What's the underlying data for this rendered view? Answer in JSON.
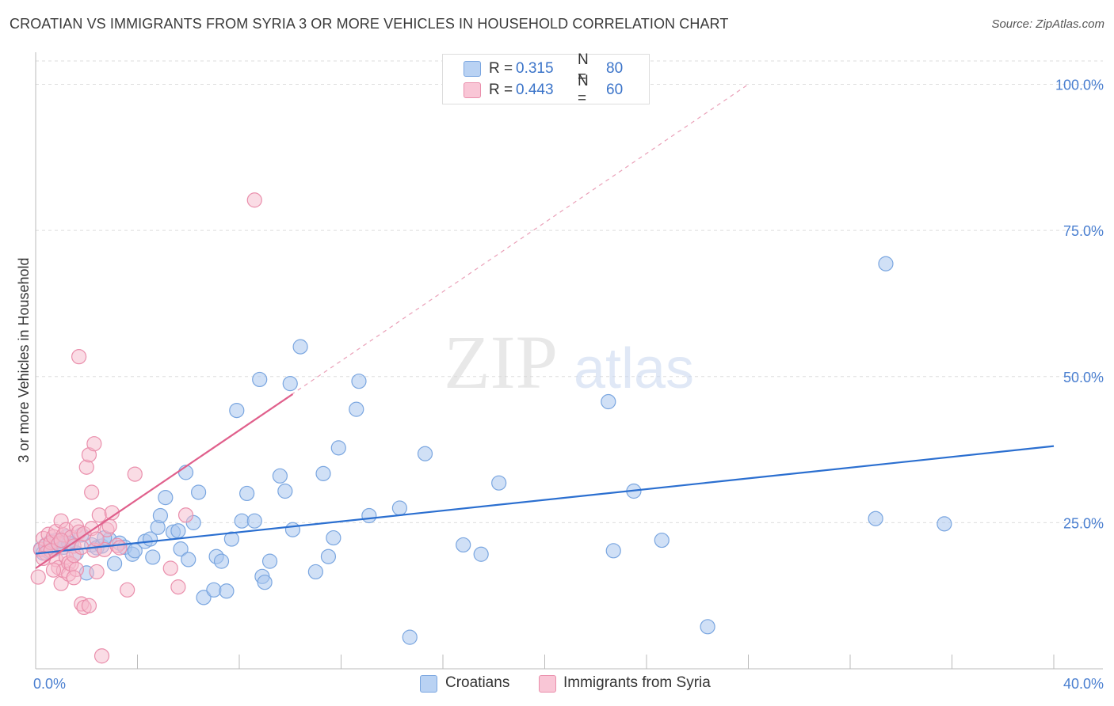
{
  "header": {
    "title": "CROATIAN VS IMMIGRANTS FROM SYRIA 3 OR MORE VEHICLES IN HOUSEHOLD CORRELATION CHART",
    "source": "Source: ZipAtlas.com"
  },
  "watermark": {
    "zip": "ZIP",
    "atlas": "atlas"
  },
  "legend": {
    "rows": [
      {
        "label": "R =",
        "r": "0.315",
        "n_label": "N =",
        "n": "80",
        "color": "#a9c6ef"
      },
      {
        "label": "R =",
        "r": "0.443",
        "n_label": "N =",
        "n": "60",
        "color": "#f4b3c8"
      }
    ]
  },
  "bottom_legend": {
    "series1": "Croatians",
    "series2": "Immigrants from Syria"
  },
  "colors": {
    "blue_fill": "#a9c6ef",
    "blue_stroke": "#7aa6e0",
    "blue_line": "#2b6fd0",
    "pink_fill": "#f6b9cc",
    "pink_stroke": "#ea8fac",
    "pink_line": "#e0608c",
    "axis_label": "#4a7fd0",
    "grid": "#dddddd"
  },
  "chart_data": {
    "type": "scatter",
    "title": "CROATIAN VS IMMIGRANTS FROM SYRIA 3 OR MORE VEHICLES IN HOUSEHOLD CORRELATION CHART",
    "xlabel": "",
    "ylabel": "3 or more Vehicles in Household",
    "xlim": [
      0,
      40
    ],
    "ylim": [
      0,
      104
    ],
    "x_tick_labels": [
      "0.0%",
      "40.0%"
    ],
    "y_ticks": [
      25,
      50,
      75,
      100
    ],
    "y_tick_labels": [
      "25.0%",
      "50.0%",
      "75.0%",
      "100.0%"
    ],
    "grid": true,
    "legend_position": "top-center",
    "series": [
      {
        "name": "Croatians",
        "R": 0.315,
        "N": 80,
        "trend": {
          "x": [
            0,
            40
          ],
          "y": [
            19.7,
            38.1
          ]
        },
        "points": [
          [
            0.2,
            20.5
          ],
          [
            0.3,
            19.8
          ],
          [
            0.4,
            21.2
          ],
          [
            0.5,
            20.1
          ],
          [
            0.6,
            21.8
          ],
          [
            0.7,
            20.4
          ],
          [
            0.8,
            22.0
          ],
          [
            0.9,
            21.3
          ],
          [
            1.0,
            21.8
          ],
          [
            1.1,
            20.8
          ],
          [
            1.2,
            22.6
          ],
          [
            1.4,
            21.4
          ],
          [
            1.6,
            19.8
          ],
          [
            1.8,
            22.9
          ],
          [
            2.0,
            16.4
          ],
          [
            2.2,
            21.2
          ],
          [
            2.4,
            20.7
          ],
          [
            2.6,
            21.0
          ],
          [
            2.9,
            22.1
          ],
          [
            3.1,
            18.0
          ],
          [
            3.3,
            21.5
          ],
          [
            3.5,
            20.8
          ],
          [
            3.8,
            19.6
          ],
          [
            3.9,
            20.2
          ],
          [
            4.3,
            21.8
          ],
          [
            4.5,
            22.2
          ],
          [
            4.6,
            19.1
          ],
          [
            4.8,
            24.2
          ],
          [
            4.9,
            26.2
          ],
          [
            5.1,
            29.3
          ],
          [
            5.4,
            23.4
          ],
          [
            5.6,
            23.6
          ],
          [
            5.7,
            20.5
          ],
          [
            5.9,
            33.6
          ],
          [
            6.0,
            18.7
          ],
          [
            6.2,
            25.0
          ],
          [
            6.4,
            30.2
          ],
          [
            6.6,
            12.2
          ],
          [
            7.0,
            13.5
          ],
          [
            7.1,
            19.2
          ],
          [
            7.3,
            18.4
          ],
          [
            7.5,
            13.3
          ],
          [
            7.7,
            22.2
          ],
          [
            7.9,
            44.2
          ],
          [
            8.1,
            25.3
          ],
          [
            8.3,
            30.0
          ],
          [
            8.6,
            25.3
          ],
          [
            8.8,
            49.5
          ],
          [
            8.9,
            15.8
          ],
          [
            9.0,
            14.8
          ],
          [
            9.2,
            18.4
          ],
          [
            9.6,
            33.0
          ],
          [
            9.8,
            30.4
          ],
          [
            10.0,
            48.8
          ],
          [
            10.1,
            23.8
          ],
          [
            10.4,
            55.1
          ],
          [
            11.0,
            16.6
          ],
          [
            11.3,
            33.4
          ],
          [
            11.5,
            19.2
          ],
          [
            11.7,
            22.4
          ],
          [
            11.9,
            37.8
          ],
          [
            12.6,
            44.4
          ],
          [
            12.7,
            49.2
          ],
          [
            13.1,
            26.2
          ],
          [
            14.3,
            27.5
          ],
          [
            14.7,
            5.4
          ],
          [
            15.3,
            36.8
          ],
          [
            16.8,
            21.2
          ],
          [
            17.5,
            19.6
          ],
          [
            18.2,
            31.8
          ],
          [
            22.5,
            45.7
          ],
          [
            22.7,
            20.2
          ],
          [
            23.5,
            30.4
          ],
          [
            24.6,
            22.0
          ],
          [
            26.4,
            7.2
          ],
          [
            33.4,
            69.3
          ],
          [
            33.0,
            25.7
          ],
          [
            35.7,
            24.8
          ],
          [
            1.3,
            21.5
          ],
          [
            2.7,
            22.4
          ]
        ]
      },
      {
        "name": "Immigrants from Syria",
        "R": 0.443,
        "N": 60,
        "trend": {
          "x": [
            0,
            10.1
          ],
          "y": [
            17.2,
            47.0
          ]
        },
        "trend_extended": {
          "x": [
            0,
            28
          ],
          "y": [
            17.2,
            100.0
          ]
        },
        "points": [
          [
            0.1,
            15.7
          ],
          [
            0.2,
            20.4
          ],
          [
            0.3,
            22.3
          ],
          [
            0.4,
            21.1
          ],
          [
            0.4,
            19.8
          ],
          [
            0.5,
            23.0
          ],
          [
            0.6,
            21.6
          ],
          [
            0.6,
            20.2
          ],
          [
            0.7,
            22.6
          ],
          [
            0.8,
            18.7
          ],
          [
            0.8,
            23.5
          ],
          [
            0.9,
            21.4
          ],
          [
            0.9,
            17.3
          ],
          [
            1.0,
            14.6
          ],
          [
            1.0,
            25.3
          ],
          [
            1.1,
            22.9
          ],
          [
            1.1,
            16.8
          ],
          [
            1.2,
            23.8
          ],
          [
            1.2,
            19.1
          ],
          [
            1.3,
            18.1
          ],
          [
            1.3,
            16.2
          ],
          [
            1.4,
            17.9
          ],
          [
            1.4,
            22.5
          ],
          [
            1.5,
            21.0
          ],
          [
            1.5,
            19.4
          ],
          [
            1.6,
            24.4
          ],
          [
            1.6,
            17.0
          ],
          [
            1.7,
            53.4
          ],
          [
            1.7,
            23.4
          ],
          [
            1.8,
            11.1
          ],
          [
            1.8,
            20.8
          ],
          [
            1.9,
            10.5
          ],
          [
            1.9,
            23.1
          ],
          [
            2.0,
            34.5
          ],
          [
            2.1,
            10.8
          ],
          [
            2.1,
            36.6
          ],
          [
            2.2,
            30.2
          ],
          [
            2.2,
            24.0
          ],
          [
            2.3,
            38.5
          ],
          [
            2.3,
            20.3
          ],
          [
            2.4,
            16.6
          ],
          [
            2.5,
            26.3
          ],
          [
            2.6,
            2.2
          ],
          [
            2.7,
            20.4
          ],
          [
            2.8,
            23.8
          ],
          [
            2.9,
            24.4
          ],
          [
            3.0,
            26.7
          ],
          [
            3.2,
            21.1
          ],
          [
            3.6,
            13.5
          ],
          [
            3.9,
            33.3
          ],
          [
            5.3,
            17.2
          ],
          [
            5.6,
            14.0
          ],
          [
            5.9,
            26.3
          ],
          [
            8.6,
            80.2
          ],
          [
            0.3,
            18.9
          ],
          [
            0.7,
            16.9
          ],
          [
            1.0,
            22.0
          ],
          [
            1.5,
            15.6
          ],
          [
            2.4,
            22.2
          ],
          [
            3.3,
            20.7
          ]
        ]
      }
    ]
  }
}
